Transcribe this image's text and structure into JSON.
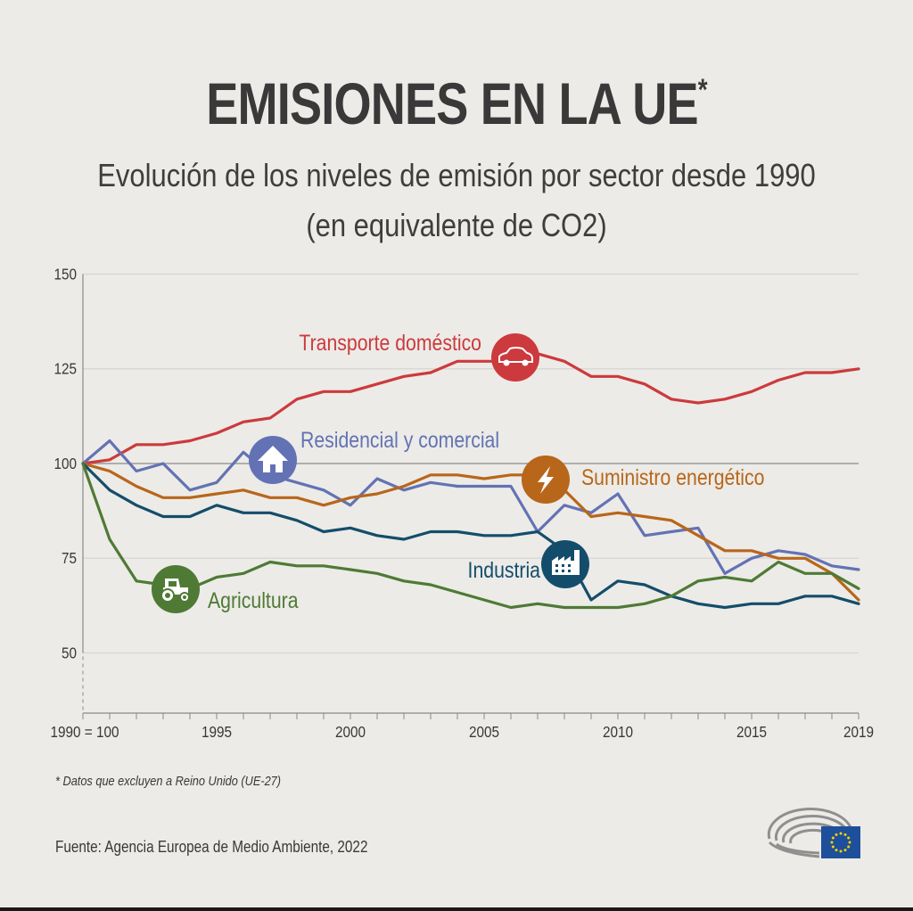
{
  "header": {
    "title": "EMISIONES EN LA UE",
    "title_asterisk": "*",
    "subtitle_line1": "Evolución de los niveles de emisión por sector desde 1990",
    "subtitle_line2": "(en equivalente de CO2)"
  },
  "footer": {
    "footnote": "* Datos que excluyen a Reino Unido (UE-27)",
    "source": "Fuente: Agencia Europea de Medio Ambiente, 2022",
    "logo": "european-parliament-logo"
  },
  "chart_data": {
    "type": "line",
    "title": "EMISIONES EN LA UE*",
    "subtitle": "Evolución de los niveles de emisión por sector desde 1990 (en equivalente de CO2)",
    "xlabel": "",
    "ylabel": "",
    "x": [
      1990,
      1991,
      1992,
      1993,
      1994,
      1995,
      1996,
      1997,
      1998,
      1999,
      2000,
      2001,
      2002,
      2003,
      2004,
      2005,
      2006,
      2007,
      2008,
      2009,
      2010,
      2011,
      2012,
      2013,
      2014,
      2015,
      2016,
      2017,
      2018,
      2019
    ],
    "x_tick_labels": [
      {
        "value": 1990,
        "label": "1990 = 100"
      },
      {
        "value": 1995,
        "label": "1995"
      },
      {
        "value": 2000,
        "label": "2000"
      },
      {
        "value": 2005,
        "label": "2005"
      },
      {
        "value": 2010,
        "label": "2010"
      },
      {
        "value": 2015,
        "label": "2015"
      },
      {
        "value": 2019,
        "label": "2019"
      }
    ],
    "y_ticks": [
      50,
      75,
      100,
      125,
      150
    ],
    "ylim": [
      34,
      150
    ],
    "xlim": [
      1990,
      2019
    ],
    "grid": "horizontal",
    "legend": "inline-labels",
    "series": [
      {
        "name": "Transporte doméstico",
        "color": "#cc3a3d",
        "icon": "car-icon",
        "icon_at": 2006,
        "values": [
          100,
          101,
          105,
          105,
          106,
          108,
          111,
          112,
          117,
          119,
          119,
          121,
          123,
          124,
          127,
          127,
          127,
          129,
          127,
          123,
          123,
          121,
          117,
          116,
          117,
          119,
          122,
          124,
          124,
          125
        ]
      },
      {
        "name": "Residencial y comercial",
        "color": "#6372b4",
        "icon": "house-icon",
        "icon_at": 1997,
        "values": [
          100,
          106,
          98,
          100,
          93,
          95,
          103,
          97,
          95,
          93,
          89,
          96,
          93,
          95,
          94,
          94,
          94,
          82,
          89,
          87,
          92,
          81,
          82,
          83,
          71,
          75,
          77,
          76,
          73,
          72
        ]
      },
      {
        "name": "Suministro energético",
        "color": "#b8661a",
        "icon": "lightning-icon",
        "icon_at": 2007.6,
        "values": [
          100,
          98,
          94,
          91,
          91,
          92,
          93,
          91,
          91,
          89,
          91,
          92,
          94,
          97,
          97,
          96,
          97,
          97,
          93,
          86,
          87,
          86,
          85,
          81,
          77,
          77,
          75,
          75,
          71,
          64
        ]
      },
      {
        "name": "Industria",
        "color": "#144d6b",
        "icon": "factory-icon",
        "icon_at": 2008.2,
        "values": [
          100,
          93,
          89,
          86,
          86,
          89,
          87,
          87,
          85,
          82,
          83,
          81,
          80,
          82,
          82,
          81,
          81,
          82,
          77,
          64,
          69,
          68,
          65,
          63,
          62,
          63,
          63,
          65,
          65,
          63
        ]
      },
      {
        "name": "Agricultura",
        "color": "#4e7a35",
        "icon": "tractor-icon",
        "icon_at": 1993.5,
        "values": [
          100,
          80,
          69,
          68,
          67,
          70,
          71,
          74,
          73,
          73,
          72,
          71,
          69,
          68,
          66,
          64,
          62,
          63,
          62,
          62,
          62,
          63,
          65,
          69,
          70,
          69,
          74,
          71,
          71,
          67
        ]
      }
    ]
  }
}
